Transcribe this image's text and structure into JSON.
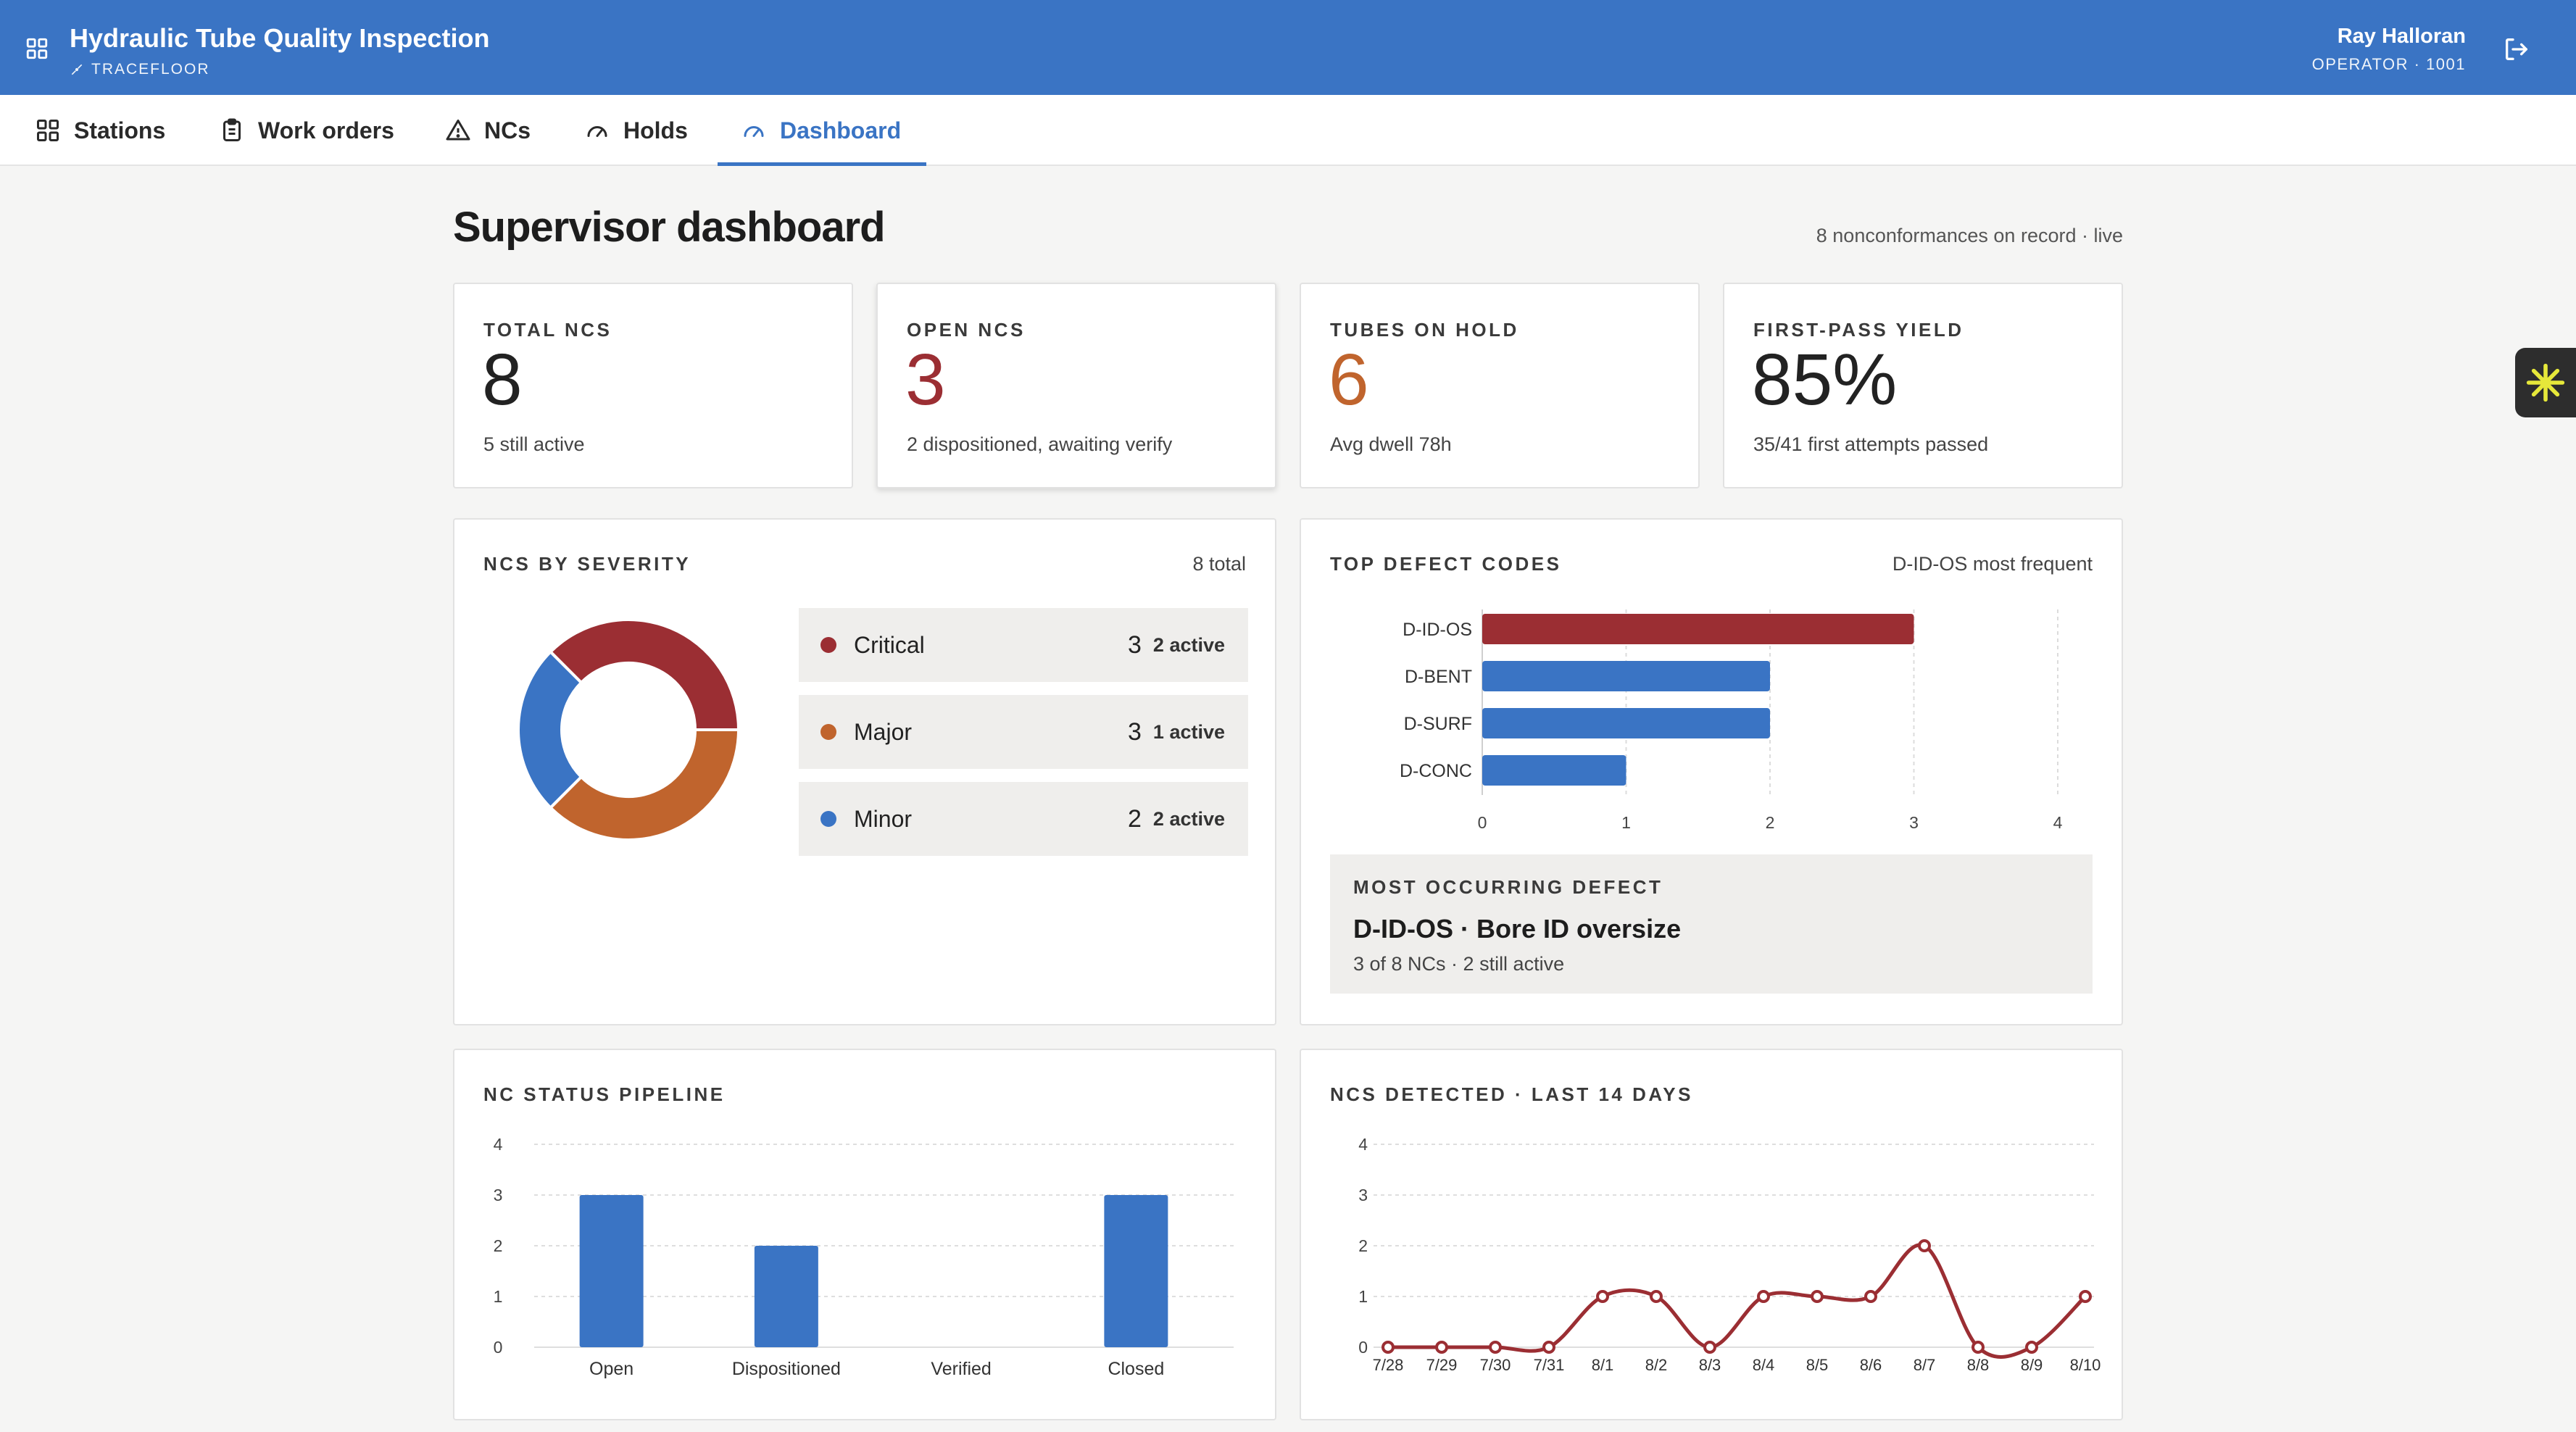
{
  "header": {
    "title": "Hydraulic Tube Quality Inspection",
    "subtitle": "TRACEFLOOR",
    "user_name": "Ray Halloran",
    "user_role": "OPERATOR · 1001"
  },
  "nav": {
    "tabs": [
      {
        "label": "Stations",
        "icon": "grid-icon"
      },
      {
        "label": "Work orders",
        "icon": "clipboard-icon"
      },
      {
        "label": "NCs",
        "icon": "warning-triangle-icon"
      },
      {
        "label": "Holds",
        "icon": "gauge-icon"
      },
      {
        "label": "Dashboard",
        "icon": "gauge-icon",
        "active": true
      }
    ]
  },
  "page": {
    "title": "Supervisor dashboard",
    "meta": "8 nonconformances on record · live"
  },
  "stats": [
    {
      "label": "TOTAL NCS",
      "value": "8",
      "note": "5 still active",
      "color": "#222222"
    },
    {
      "label": "OPEN NCS",
      "value": "3",
      "note": "2 dispositioned, awaiting verify",
      "color": "#9b2e33"
    },
    {
      "label": "TUBES ON HOLD",
      "value": "6",
      "note": "Avg dwell 78h",
      "color": "#c0642d"
    },
    {
      "label": "FIRST-PASS YIELD",
      "value": "85%",
      "note": "35/41 first attempts passed",
      "color": "#222222"
    }
  ],
  "severity": {
    "title": "NCS BY SEVERITY",
    "meta": "8 total",
    "rows": [
      {
        "label": "Critical",
        "count": "3",
        "active": "2 active",
        "color": "#9b2e33"
      },
      {
        "label": "Major",
        "count": "3",
        "active": "1 active",
        "color": "#c0642d"
      },
      {
        "label": "Minor",
        "count": "2",
        "active": "2 active",
        "color": "#3a74c4"
      }
    ]
  },
  "defects": {
    "title": "TOP DEFECT CODES",
    "meta": "D-ID-OS most frequent",
    "most_label": "MOST OCCURRING DEFECT",
    "most_title": "D-ID-OS · Bore ID oversize",
    "most_note": "3 of 8 NCs · 2 still active"
  },
  "pipeline": {
    "title": "NC STATUS PIPELINE"
  },
  "trend": {
    "title": "NCS DETECTED · LAST 14 DAYS"
  },
  "chart_data": [
    {
      "type": "pie",
      "categories": [
        "Critical",
        "Major",
        "Minor"
      ],
      "values": [
        3,
        3,
        2
      ],
      "colors": [
        "#9b2e33",
        "#c0642d",
        "#3a74c4"
      ],
      "donut": true
    },
    {
      "type": "bar",
      "orientation": "horizontal",
      "categories": [
        "D-ID-OS",
        "D-BENT",
        "D-SURF",
        "D-CONC"
      ],
      "values": [
        3,
        2,
        2,
        1
      ],
      "colors": [
        "#9b2e33",
        "#3a74c4",
        "#3a74c4",
        "#3a74c4"
      ],
      "xlim": [
        0,
        4
      ],
      "xticks": [
        0,
        1,
        2,
        3,
        4
      ],
      "grid": true
    },
    {
      "type": "bar",
      "categories": [
        "Open",
        "Dispositioned",
        "Verified",
        "Closed"
      ],
      "values": [
        3,
        2,
        0,
        3
      ],
      "color": "#3a74c4",
      "ylim": [
        0,
        4
      ],
      "yticks": [
        0,
        1,
        2,
        3,
        4
      ],
      "grid": true
    },
    {
      "type": "line",
      "x": [
        "7/28",
        "7/29",
        "7/30",
        "7/31",
        "8/1",
        "8/2",
        "8/3",
        "8/4",
        "8/5",
        "8/6",
        "8/7",
        "8/8",
        "8/9",
        "8/10"
      ],
      "values": [
        0,
        0,
        0,
        0,
        1,
        1,
        0,
        1,
        1,
        1,
        2,
        0,
        0,
        1
      ],
      "color": "#9b2e33",
      "ylim": [
        0,
        4
      ],
      "yticks": [
        0,
        1,
        2,
        3,
        4
      ],
      "grid": true
    }
  ]
}
